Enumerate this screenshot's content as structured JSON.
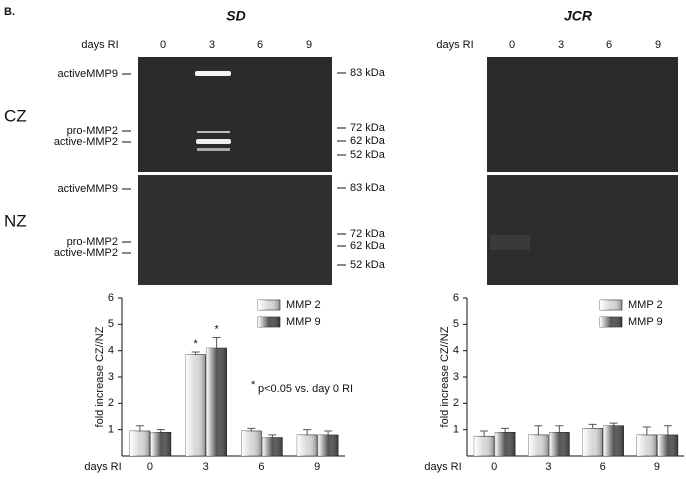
{
  "figure": {
    "panel_label": "B.",
    "gels": [
      {
        "title": "SD",
        "axis_label": "days RI",
        "lanes": [
          "0",
          "3",
          "6",
          "9"
        ],
        "zones": [
          {
            "name": "CZ",
            "bands": [
              "activeMMP9",
              "pro-MMP2",
              "active-MMP2"
            ],
            "markers": [
              "83 kDa",
              "72 kDa",
              "62 kDa",
              "52 kDa"
            ]
          },
          {
            "name": "NZ",
            "bands": [
              "activeMMP9",
              "pro-MMP2",
              "active-MMP2"
            ],
            "markers": [
              "83 kDa",
              "72 kDa",
              "62 kDa",
              "52 kDa"
            ]
          }
        ]
      },
      {
        "title": "JCR",
        "axis_label": "days RI",
        "lanes": [
          "0",
          "3",
          "6",
          "9"
        ]
      }
    ]
  },
  "chart_data": [
    {
      "type": "bar",
      "x_label": "days RI",
      "y_label": "fold increase CZ//NZ",
      "categories": [
        "0",
        "3",
        "6",
        "9"
      ],
      "series": [
        {
          "name": "MMP 2",
          "color": "#d8d8d8",
          "values": [
            0.95,
            3.85,
            0.95,
            0.8
          ],
          "errors": [
            0.2,
            0.1,
            0.1,
            0.2
          ],
          "value_labels": [
            null,
            "*",
            null,
            null
          ]
        },
        {
          "name": "MMP 9",
          "color": "#555555",
          "values": [
            0.9,
            4.1,
            0.7,
            0.8
          ],
          "errors": [
            0.1,
            0.4,
            0.1,
            0.15
          ],
          "value_labels": [
            null,
            "*",
            null,
            null
          ]
        }
      ],
      "footnote_marker": "*",
      "footnote": "p<0.05 vs. day 0 RI",
      "ylim": [
        0,
        6
      ],
      "yticks": [
        1,
        2,
        3,
        4,
        5,
        6
      ],
      "legend": "top-right"
    },
    {
      "type": "bar",
      "x_label": "days RI",
      "y_label": "fold increase CZ//NZ",
      "categories": [
        "0",
        "3",
        "6",
        "9"
      ],
      "series": [
        {
          "name": "MMP 2",
          "color": "#d8d8d8",
          "values": [
            0.75,
            0.8,
            1.05,
            0.8
          ],
          "errors": [
            0.2,
            0.35,
            0.15,
            0.3
          ]
        },
        {
          "name": "MMP 9",
          "color": "#555555",
          "values": [
            0.9,
            0.9,
            1.15,
            0.8
          ],
          "errors": [
            0.15,
            0.25,
            0.1,
            0.35
          ]
        }
      ],
      "ylim": [
        0,
        6
      ],
      "yticks": [
        1,
        2,
        3,
        4,
        5,
        6
      ],
      "legend": "top-right"
    }
  ]
}
